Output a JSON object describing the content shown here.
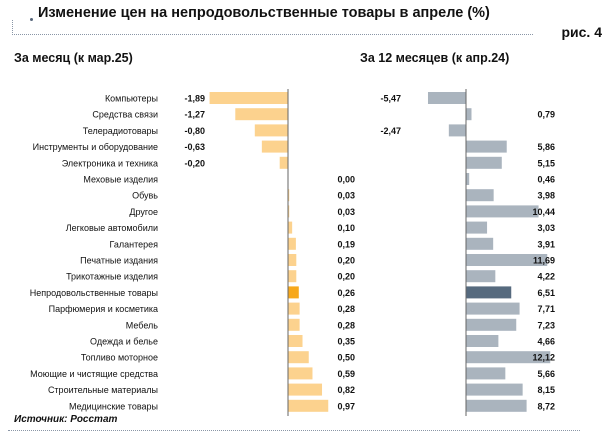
{
  "header": {
    "title": "Изменение цен на непродовольственные товары в апреле (%)",
    "figure": "рис. 4"
  },
  "footer": {
    "source": "Источник: Росстат"
  },
  "chart_data": [
    {
      "type": "bar",
      "orientation": "horizontal",
      "title": "За месяц (к мар.25)",
      "categories": [
        "Компьютеры",
        "Средства связи",
        "Телерадиотовары",
        "Инструменты и оборудование",
        "Электроника и техника",
        "Меховые изделия",
        "Обувь",
        "Другое",
        "Легковые автомобили",
        "Галантерея",
        "Печатные издания",
        "Трикотажные изделия",
        "Непродовольственные товары",
        "Парфюмерия и косметика",
        "Мебель",
        "Одежда и белье",
        "Топливо моторное",
        "Моющие и чистящие средства",
        "Строительные материалы",
        "Медицинские товары"
      ],
      "values": [
        -1.89,
        -1.27,
        -0.8,
        -0.63,
        -0.2,
        0.0,
        0.03,
        0.03,
        0.1,
        0.19,
        0.2,
        0.2,
        0.26,
        0.28,
        0.28,
        0.35,
        0.5,
        0.59,
        0.82,
        0.97
      ],
      "highlight": "Непродовольственные товары",
      "color": "#fcd28e",
      "highlight_color": "#f7a81b"
    },
    {
      "type": "bar",
      "orientation": "horizontal",
      "title": "За 12 месяцев (к апр.24)",
      "categories": [
        "Компьютеры",
        "Средства связи",
        "Телерадиотовары",
        "Инструменты и оборудование",
        "Электроника и техника",
        "Меховые изделия",
        "Обувь",
        "Другое",
        "Легковые автомобили",
        "Галантерея",
        "Печатные издания",
        "Трикотажные изделия",
        "Непродовольственные товары",
        "Парфюмерия и косметика",
        "Мебель",
        "Одежда и белье",
        "Топливо моторное",
        "Моющие и чистящие средства",
        "Строительные материалы",
        "Медицинские товары"
      ],
      "values": [
        -5.47,
        0.79,
        -2.47,
        5.86,
        5.15,
        0.46,
        3.98,
        10.44,
        3.03,
        3.91,
        11.69,
        4.22,
        6.51,
        7.71,
        7.23,
        4.66,
        12.12,
        5.66,
        8.15,
        8.72
      ],
      "highlight": "Непродовольственные товары",
      "color": "#aab4be",
      "highlight_color": "#566a7e"
    }
  ]
}
